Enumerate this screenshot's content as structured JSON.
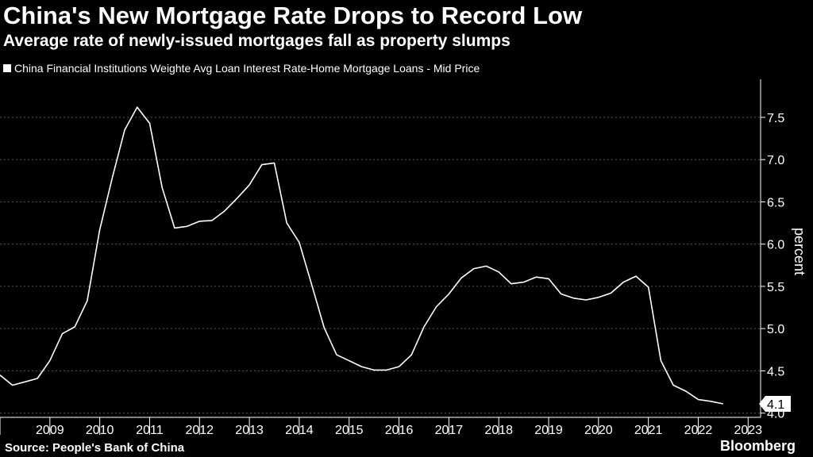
{
  "header": {
    "title": "China's New Mortgage Rate Drops to Record Low",
    "subtitle": "Average rate of newly-issued mortgages fall as property slumps",
    "legend": "China Financial Institutions Weighte Avg Loan Interest Rate-Home Mortgage Loans - Mid Price"
  },
  "footer": {
    "source": "Source: People's Bank of China",
    "brand": "Bloomberg"
  },
  "colors": {
    "background": "#000000",
    "line": "#ffffff",
    "grid": "#555555"
  },
  "chart_data": {
    "type": "line",
    "title": "China's New Mortgage Rate Drops to Record Low",
    "subtitle": "Average rate of newly-issued mortgages fall as property slumps",
    "xlabel": "",
    "ylabel": "percent",
    "ylim": [
      3.95,
      7.95
    ],
    "xlim": [
      2008.5,
      2023.75
    ],
    "yticks": [
      "4.0",
      "4.5",
      "5.0",
      "5.5",
      "6.0",
      "6.5",
      "7.0",
      "7.5"
    ],
    "xticks": [
      "2009",
      "2010",
      "2011",
      "2012",
      "2013",
      "2014",
      "2015",
      "2016",
      "2017",
      "2018",
      "2019",
      "2020",
      "2021",
      "2022",
      "2023"
    ],
    "last_value_label": "4.1",
    "series": [
      {
        "name": "China Financial Institutions Weighte Avg Loan Interest Rate-Home Mortgage Loans - Mid Price",
        "x": [
          2008.5,
          2008.75,
          2009.0,
          2009.25,
          2009.5,
          2009.75,
          2010.0,
          2010.25,
          2010.5,
          2010.75,
          2011.0,
          2011.25,
          2011.5,
          2011.75,
          2012.0,
          2012.25,
          2012.5,
          2012.75,
          2013.0,
          2013.25,
          2013.5,
          2013.75,
          2014.0,
          2014.25,
          2014.5,
          2014.75,
          2015.0,
          2015.25,
          2015.5,
          2015.75,
          2016.0,
          2016.25,
          2016.5,
          2016.75,
          2017.0,
          2017.25,
          2017.5,
          2017.75,
          2018.0,
          2018.25,
          2018.5,
          2018.75,
          2019.0,
          2019.25,
          2019.5,
          2019.75,
          2020.0,
          2020.25,
          2020.5,
          2020.75,
          2021.0,
          2021.25,
          2021.5,
          2021.75,
          2022.0,
          2022.25,
          2022.5,
          2022.75,
          2023.0
        ],
        "values": [
          4.45,
          4.33,
          4.37,
          4.41,
          4.62,
          4.94,
          5.02,
          5.33,
          6.17,
          6.78,
          7.35,
          7.62,
          7.43,
          6.67,
          6.19,
          6.21,
          6.27,
          6.28,
          6.39,
          6.54,
          6.7,
          6.94,
          6.96,
          6.25,
          6.02,
          5.52,
          5.01,
          4.69,
          4.62,
          4.55,
          4.51,
          4.51,
          4.55,
          4.69,
          5.02,
          5.26,
          5.41,
          5.6,
          5.71,
          5.74,
          5.67,
          5.53,
          5.55,
          5.61,
          5.59,
          5.41,
          5.36,
          5.34,
          5.37,
          5.42,
          5.55,
          5.62,
          5.49,
          4.62,
          4.33,
          4.26,
          4.16,
          4.14,
          4.11
        ]
      }
    ]
  }
}
